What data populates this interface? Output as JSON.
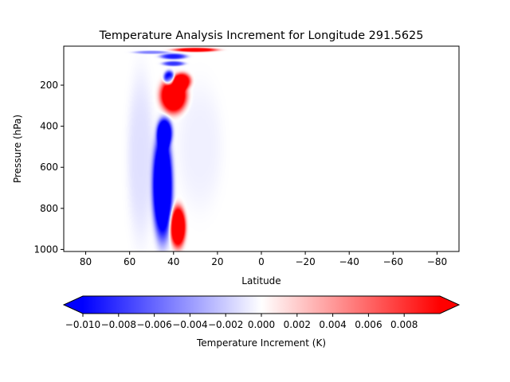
{
  "chart_data": {
    "type": "heatmap",
    "title": "Temperature Analysis Increment for Longitude 291.5625",
    "xlabel": "Latitude",
    "ylabel": "Pressure (hPa)",
    "xlim": [
      90,
      -90
    ],
    "ylim": [
      1010,
      10
    ],
    "y_inverted": true,
    "x_ticks": [
      80,
      60,
      40,
      20,
      0,
      -20,
      -40,
      -60,
      -80
    ],
    "x_tick_labels": [
      "80",
      "60",
      "40",
      "20",
      "0",
      "−20",
      "−40",
      "−60",
      "−80"
    ],
    "y_ticks": [
      200,
      400,
      600,
      800,
      1000
    ],
    "y_tick_labels": [
      "200",
      "400",
      "600",
      "800",
      "1000"
    ],
    "colormap": "bwr",
    "color_min": "#0000ff",
    "color_mid": "#ffffff",
    "color_max": "#ff0000",
    "vmin": -0.01,
    "vmax": 0.01,
    "features": [
      {
        "lat": 45,
        "p": 690,
        "dlat": 4.5,
        "dp": 260,
        "value": -0.016
      },
      {
        "lat": 44,
        "p": 430,
        "dlat": 3.5,
        "dp": 70,
        "value": -0.012
      },
      {
        "lat": 42,
        "p": 165,
        "dlat": 2.5,
        "dp": 35,
        "value": -0.012
      },
      {
        "lat": 40,
        "p": 250,
        "dlat": 6,
        "dp": 85,
        "value": 0.016
      },
      {
        "lat": 36,
        "p": 180,
        "dlat": 4,
        "dp": 40,
        "value": 0.012
      },
      {
        "lat": 38,
        "p": 890,
        "dlat": 3.5,
        "dp": 100,
        "value": 0.016
      },
      {
        "lat": 30,
        "p": 28,
        "dlat": 10,
        "dp": 10,
        "value": 0.012
      },
      {
        "lat": 40,
        "p": 60,
        "dlat": 6,
        "dp": 14,
        "value": -0.009
      },
      {
        "lat": 40,
        "p": 95,
        "dlat": 5,
        "dp": 12,
        "value": -0.008
      },
      {
        "lat": 50,
        "p": 40,
        "dlat": 8,
        "dp": 8,
        "value": -0.005
      },
      {
        "lat": 55,
        "p": 550,
        "dlat": 6,
        "dp": 400,
        "value": -0.0012
      },
      {
        "lat": 28,
        "p": 500,
        "dlat": 10,
        "dp": 300,
        "value": -0.0006
      }
    ]
  },
  "colorbar": {
    "label": "Temperature Increment (K)",
    "ticks": [
      -0.01,
      -0.008,
      -0.006,
      -0.004,
      -0.002,
      0.0,
      0.002,
      0.004,
      0.006,
      0.008
    ],
    "tick_labels": [
      "−0.010",
      "−0.008",
      "−0.006",
      "−0.004",
      "−0.002",
      "0.000",
      "0.002",
      "0.004",
      "0.006",
      "0.008"
    ],
    "extend": "both"
  }
}
